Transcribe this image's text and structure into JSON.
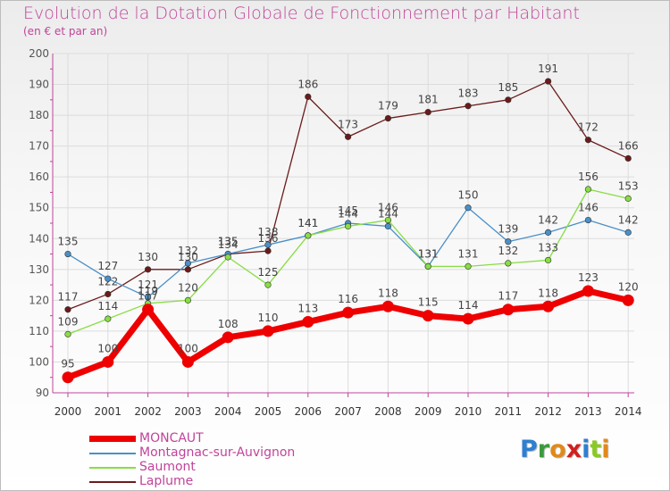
{
  "title": "Evolution de la Dotation Globale de Fonctionnement par Habitant",
  "subtitle": "(en € et par an)",
  "logo": "Proxiti",
  "colors": {
    "title": "#c0449a",
    "axis": "#c0449a",
    "grid": "#dcdcdc"
  },
  "chart_data": {
    "type": "line",
    "title": "Evolution de la Dotation Globale de Fonctionnement par Habitant",
    "subtitle": "(en € et par an)",
    "xlabel": "",
    "ylabel": "",
    "ylim": [
      90,
      200
    ],
    "yticks": [
      90,
      100,
      110,
      120,
      130,
      140,
      150,
      160,
      170,
      180,
      190,
      200
    ],
    "grid": true,
    "legend_position": "bottom-left",
    "categories": [
      "2000",
      "2001",
      "2002",
      "2003",
      "2004",
      "2005",
      "2006",
      "2007",
      "2008",
      "2009",
      "2010",
      "2011",
      "2012",
      "2013",
      "2014"
    ],
    "series": [
      {
        "name": "Laplume",
        "color": "#6b1a1a",
        "values": [
          117,
          122,
          130,
          130,
          135,
          136,
          186,
          173,
          179,
          181,
          183,
          185,
          191,
          172,
          166
        ]
      },
      {
        "name": "Montagnac-sur-Auvignon",
        "color": "#4a90c8",
        "values": [
          135,
          127,
          121,
          132,
          135,
          138,
          141,
          145,
          144,
          131,
          150,
          139,
          142,
          146,
          142
        ]
      },
      {
        "name": "Saumont",
        "color": "#88dd44",
        "values": [
          109,
          114,
          119,
          120,
          134,
          125,
          141,
          144,
          146,
          131,
          131,
          132,
          133,
          156,
          153
        ]
      },
      {
        "name": "MONCAUT",
        "color": "#ee0000",
        "values": [
          95,
          100,
          117,
          100,
          108,
          110,
          113,
          116,
          118,
          115,
          114,
          117,
          118,
          123,
          120
        ]
      }
    ],
    "legend_order": [
      "MONCAUT",
      "Montagnac-sur-Auvignon",
      "Saumont",
      "Laplume"
    ]
  }
}
